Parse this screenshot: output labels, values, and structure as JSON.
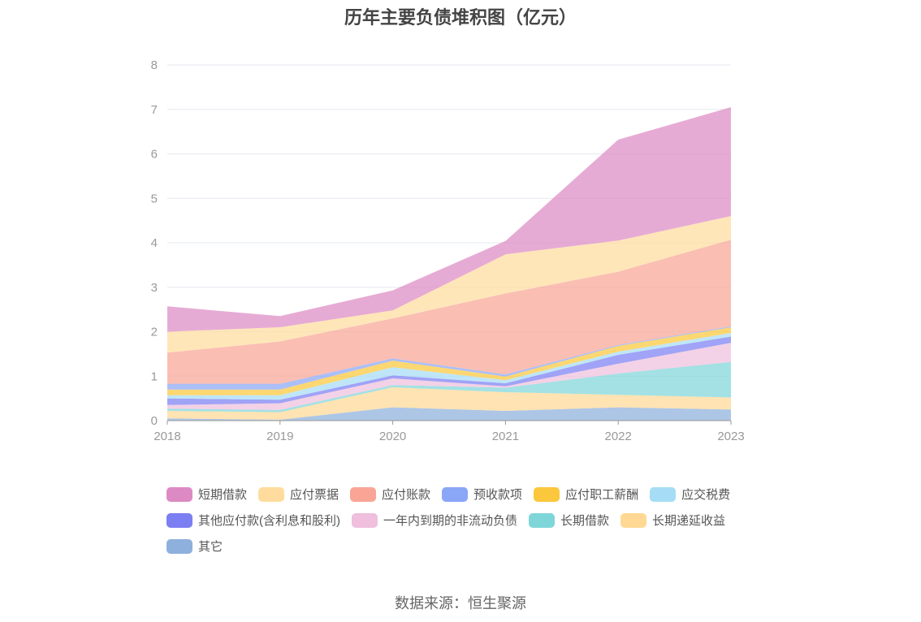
{
  "title": "历年主要负债堆积图（亿元）",
  "source_text": "数据来源：恒生聚源",
  "chart_data": {
    "type": "area",
    "stacked": true,
    "title": "历年主要负债堆积图（亿元）",
    "xlabel": "",
    "ylabel": "",
    "x": [
      "2018",
      "2019",
      "2020",
      "2021",
      "2022",
      "2023"
    ],
    "ylim": [
      0,
      8
    ],
    "yticks": [
      0,
      1,
      2,
      3,
      4,
      5,
      6,
      7,
      8
    ],
    "grid": true,
    "legend_position": "bottom",
    "series": [
      {
        "name": "其它",
        "color": "#8eb0dc",
        "values": [
          0.05,
          0.02,
          0.3,
          0.22,
          0.3,
          0.25
        ]
      },
      {
        "name": "长期递延收益",
        "color": "#ffd894",
        "values": [
          0.17,
          0.17,
          0.45,
          0.42,
          0.28,
          0.27
        ]
      },
      {
        "name": "长期借款",
        "color": "#7fd6d9",
        "values": [
          0.05,
          0.05,
          0.05,
          0.1,
          0.48,
          0.8
        ]
      },
      {
        "name": "一年内到期的非流动负债",
        "color": "#efbfdd",
        "values": [
          0.08,
          0.15,
          0.15,
          0.03,
          0.22,
          0.43
        ]
      },
      {
        "name": "其他应付款(含利息和股利)",
        "color": "#7b7ff2",
        "values": [
          0.15,
          0.08,
          0.07,
          0.07,
          0.2,
          0.14
        ]
      },
      {
        "name": "应交税费",
        "color": "#a6dcf5",
        "values": [
          0.07,
          0.1,
          0.18,
          0.07,
          0.07,
          0.08
        ]
      },
      {
        "name": "应付职工薪酬",
        "color": "#fbc73c",
        "values": [
          0.13,
          0.13,
          0.15,
          0.08,
          0.13,
          0.13
        ]
      },
      {
        "name": "预收款项",
        "color": "#8aa6f6",
        "values": [
          0.13,
          0.13,
          0.05,
          0.05,
          0.02,
          0.02
        ]
      },
      {
        "name": "应付账款",
        "color": "#f8a596",
        "values": [
          0.7,
          0.95,
          0.9,
          1.82,
          1.65,
          1.95
        ]
      },
      {
        "name": "应付票据",
        "color": "#ffdc9e",
        "values": [
          0.47,
          0.32,
          0.18,
          0.88,
          0.7,
          0.53
        ]
      },
      {
        "name": "短期借款",
        "color": "#dd8ac4",
        "values": [
          0.57,
          0.25,
          0.45,
          0.3,
          2.27,
          2.45
        ]
      }
    ],
    "legend_order": [
      "短期借款",
      "应付票据",
      "应付账款",
      "预收款项",
      "应付职工薪酬",
      "应交税费",
      "其他应付款(含利息和股利)",
      "一年内到期的非流动负债",
      "长期借款",
      "长期递延收益",
      "其它"
    ]
  }
}
